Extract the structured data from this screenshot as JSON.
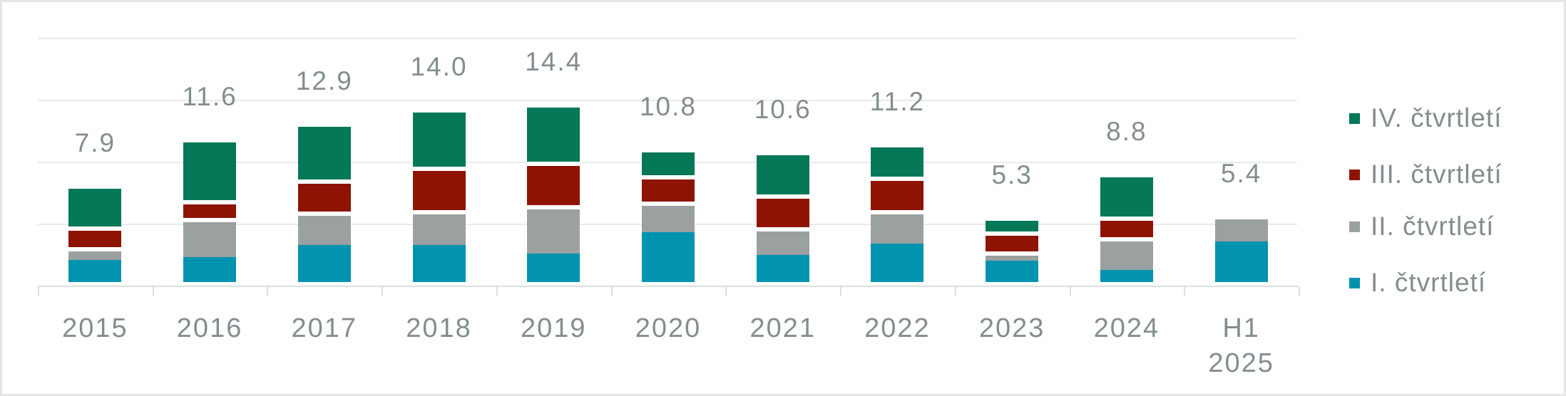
{
  "chart_data": {
    "type": "bar",
    "stacked": true,
    "title": "",
    "xlabel": "",
    "ylabel": "",
    "categories": [
      "2015",
      "2016",
      "2017",
      "2018",
      "2019",
      "2020",
      "2021",
      "2022",
      "2023",
      "2024",
      "H1\n2025"
    ],
    "series": [
      {
        "name": "I. čtvrtletí",
        "color": "#0293AE",
        "values": [
          1.8,
          2.0,
          3.0,
          3.0,
          2.3,
          4.0,
          2.2,
          3.1,
          1.7,
          1.0,
          3.3
        ]
      },
      {
        "name": "II. čtvrtletí",
        "color": "#9BA0A1",
        "values": [
          1.0,
          3.2,
          2.7,
          2.8,
          3.9,
          2.5,
          2.2,
          2.7,
          0.8,
          2.6,
          2.1
        ]
      },
      {
        "name": "III. čtvrtletí",
        "color": "#8E1302",
        "values": [
          1.7,
          1.4,
          2.6,
          3.5,
          3.5,
          2.1,
          2.7,
          2.7,
          1.6,
          1.7,
          0
        ]
      },
      {
        "name": "IV. čtvrtletí",
        "color": "#047857",
        "values": [
          3.4,
          5.0,
          4.6,
          4.7,
          4.7,
          2.2,
          3.5,
          2.7,
          1.2,
          3.5,
          0
        ]
      }
    ],
    "total_labels": [
      "7.9",
      "11.6",
      "12.9",
      "14.0",
      "14.4",
      "10.8",
      "10.6",
      "11.2",
      "5.3",
      "8.8",
      "5.4"
    ],
    "ylim": [
      0,
      20
    ],
    "gridline_interval": 5,
    "grid": true,
    "legend_position": "right"
  },
  "legend": {
    "items": [
      {
        "label": "IV. čtvrtletí",
        "color": "#047857"
      },
      {
        "label": "III. čtvrtletí",
        "color": "#8E1302"
      },
      {
        "label": "II. čtvrtletí",
        "color": "#9BA0A1"
      },
      {
        "label": "I. čtvrtletí",
        "color": "#0293AE"
      }
    ]
  },
  "colors": {
    "text": "#838D90",
    "gridline": "#E9EBEB",
    "axis_line": "#DCDFDF",
    "background": "#FFFFFF",
    "border": "#E4E6E6"
  }
}
